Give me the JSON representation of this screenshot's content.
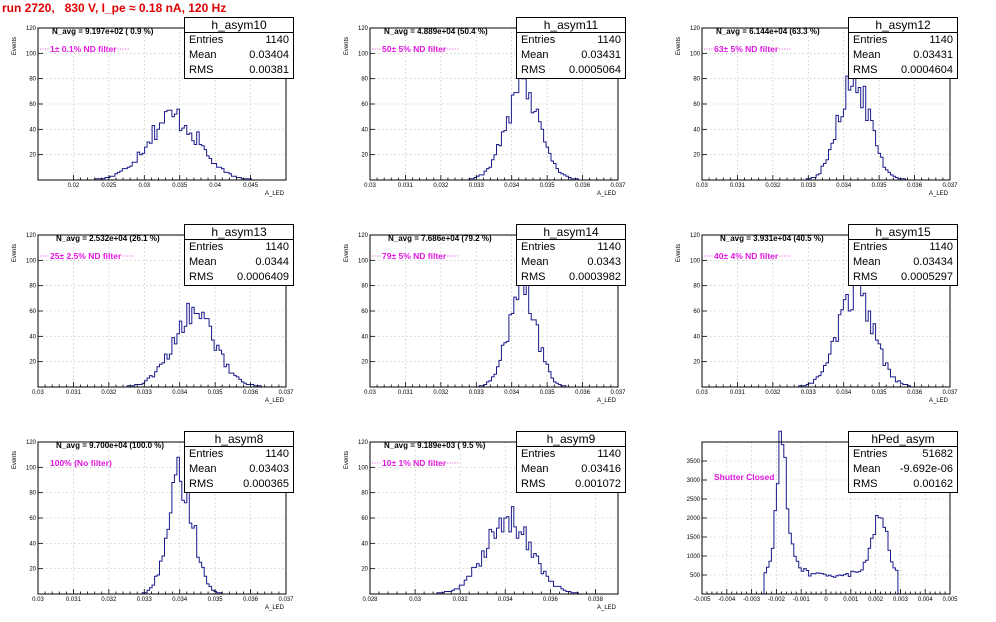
{
  "run_title": "run 2720,   830 V, I_pe ≈ 0.18 nA, 120 Hz",
  "chart_data": [
    {
      "type": "bar",
      "name": "h_asym10",
      "stats": {
        "entries_label": "Entries",
        "entries": "1140",
        "mean_label": "Mean",
        "mean": "0.03404",
        "rms_label": "RMS",
        "rms": "0.00381"
      },
      "n_avg": "N_avg = 9.197e+02 ( 0.9 %)",
      "filter": "1± 0.1% ND filter",
      "ylabel": "Events",
      "xlabel": "A_LED",
      "xlim": [
        0.015,
        0.05
      ],
      "ylim": [
        0,
        120
      ],
      "xticks": [
        0.02,
        0.025,
        0.03,
        0.035,
        0.04,
        0.045
      ],
      "xtick_labels": [
        "0.02",
        "0.025",
        "0.03",
        "0.035",
        "0.04",
        "0.045"
      ],
      "yticks": [
        0,
        20,
        40,
        60,
        80,
        100,
        120
      ],
      "ytick_labels": [
        "",
        "20",
        "40",
        "60",
        "80",
        "100",
        "120"
      ],
      "mean_value": 0.03404,
      "rms_value": 0.00381,
      "peak": 50,
      "entries_value": 1140
    },
    {
      "type": "bar",
      "name": "h_asym11",
      "stats": {
        "entries_label": "Entries",
        "entries": "1140",
        "mean_label": "Mean",
        "mean": "0.03431",
        "rms_label": "RMS",
        "rms": "0.0005064"
      },
      "n_avg": "N_avg = 4.889e+04 (50.4 %)",
      "filter": "50± 5% ND filter",
      "ylabel": "Events",
      "xlabel": "A_LED",
      "xlim": [
        0.03,
        0.037
      ],
      "ylim": [
        0,
        120
      ],
      "xticks": [
        0.03,
        0.031,
        0.032,
        0.033,
        0.034,
        0.035,
        0.036,
        0.037
      ],
      "xtick_labels": [
        "0.03",
        "0.031",
        "0.032",
        "0.033",
        "0.034",
        "0.035",
        "0.036",
        "0.037"
      ],
      "yticks": [
        0,
        20,
        40,
        60,
        80,
        100,
        120
      ],
      "ytick_labels": [
        "",
        "20",
        "40",
        "60",
        "80",
        "100",
        "120"
      ],
      "mean_value": 0.03431,
      "rms_value": 0.0005064,
      "peak": 75,
      "entries_value": 1140
    },
    {
      "type": "bar",
      "name": "h_asym12",
      "stats": {
        "entries_label": "Entries",
        "entries": "1140",
        "mean_label": "Mean",
        "mean": "0.03431",
        "rms_label": "RMS",
        "rms": "0.0004604"
      },
      "n_avg": "N_avg = 6.144e+04 (63.3 %)",
      "filter": "63± 5% ND filter",
      "ylabel": "Events",
      "xlabel": "A_LED",
      "xlim": [
        0.03,
        0.037
      ],
      "ylim": [
        0,
        120
      ],
      "xticks": [
        0.03,
        0.031,
        0.032,
        0.033,
        0.034,
        0.035,
        0.036,
        0.037
      ],
      "xtick_labels": [
        "0.03",
        "0.031",
        "0.032",
        "0.033",
        "0.034",
        "0.035",
        "0.036",
        "0.037"
      ],
      "yticks": [
        0,
        20,
        40,
        60,
        80,
        100,
        120
      ],
      "ytick_labels": [
        "",
        "20",
        "40",
        "60",
        "80",
        "100",
        "120"
      ],
      "mean_value": 0.03431,
      "rms_value": 0.0004604,
      "peak": 80,
      "entries_value": 1140
    },
    {
      "type": "bar",
      "name": "h_asym13",
      "stats": {
        "entries_label": "Entries",
        "entries": "1140",
        "mean_label": "Mean",
        "mean": "0.0344",
        "rms_label": "RMS",
        "rms": "0.0006409"
      },
      "n_avg": "N_avg = 2.532e+04 (26.1 %)",
      "filter": "25± 2.5% ND filter",
      "ylabel": "Events",
      "xlabel": "A_LED",
      "xlim": [
        0.03,
        0.037
      ],
      "ylim": [
        0,
        120
      ],
      "xticks": [
        0.03,
        0.031,
        0.032,
        0.033,
        0.034,
        0.035,
        0.036,
        0.037
      ],
      "xtick_labels": [
        "0.03",
        "0.031",
        "0.032",
        "0.033",
        "0.034",
        "0.035",
        "0.036",
        "0.037"
      ],
      "yticks": [
        0,
        20,
        40,
        60,
        80,
        100,
        120
      ],
      "ytick_labels": [
        "",
        "20",
        "40",
        "60",
        "80",
        "100",
        "120"
      ],
      "mean_value": 0.0344,
      "rms_value": 0.0006409,
      "peak": 57,
      "entries_value": 1140
    },
    {
      "type": "bar",
      "name": "h_asym14",
      "stats": {
        "entries_label": "Entries",
        "entries": "1140",
        "mean_label": "Mean",
        "mean": "0.0343",
        "rms_label": "RMS",
        "rms": "0.0003982"
      },
      "n_avg": "N_avg = 7.686e+04 (79.2 %)",
      "filter": "79± 5% ND filter",
      "ylabel": "Events",
      "xlabel": "A_LED",
      "xlim": [
        0.03,
        0.037
      ],
      "ylim": [
        0,
        120
      ],
      "xticks": [
        0.03,
        0.031,
        0.032,
        0.033,
        0.034,
        0.035,
        0.036,
        0.037
      ],
      "xtick_labels": [
        "0.03",
        "0.031",
        "0.032",
        "0.033",
        "0.034",
        "0.035",
        "0.036",
        "0.037"
      ],
      "yticks": [
        0,
        20,
        40,
        60,
        80,
        100,
        120
      ],
      "ytick_labels": [
        "",
        "20",
        "40",
        "60",
        "80",
        "100",
        "120"
      ],
      "mean_value": 0.0343,
      "rms_value": 0.0003982,
      "peak": 83,
      "entries_value": 1140
    },
    {
      "type": "bar",
      "name": "h_asym15",
      "stats": {
        "entries_label": "Entries",
        "entries": "1140",
        "mean_label": "Mean",
        "mean": "0.03434",
        "rms_label": "RMS",
        "rms": "0.0005297"
      },
      "n_avg": "N_avg = 3.931e+04 (40.5 %)",
      "filter": "40± 4% ND filter",
      "ylabel": "Events",
      "xlabel": "A_LED",
      "xlim": [
        0.03,
        0.037
      ],
      "ylim": [
        0,
        120
      ],
      "xticks": [
        0.03,
        0.031,
        0.032,
        0.033,
        0.034,
        0.035,
        0.036,
        0.037
      ],
      "xtick_labels": [
        "0.03",
        "0.031",
        "0.032",
        "0.033",
        "0.034",
        "0.035",
        "0.036",
        "0.037"
      ],
      "yticks": [
        0,
        20,
        40,
        60,
        80,
        100,
        120
      ],
      "ytick_labels": [
        "",
        "20",
        "40",
        "60",
        "80",
        "100",
        "120"
      ],
      "mean_value": 0.03434,
      "rms_value": 0.0005297,
      "peak": 73,
      "entries_value": 1140
    },
    {
      "type": "bar",
      "name": "h_asym8",
      "stats": {
        "entries_label": "Entries",
        "entries": "1140",
        "mean_label": "Mean",
        "mean": "0.03403",
        "rms_label": "RMS",
        "rms": "0.000365"
      },
      "n_avg": "N_avg = 9.700e+04 (100.0 %)",
      "filter": "100% (No filter)",
      "ylabel": "Events",
      "xlabel": "A_LED",
      "xlim": [
        0.03,
        0.037
      ],
      "ylim": [
        0,
        120
      ],
      "xticks": [
        0.03,
        0.031,
        0.032,
        0.033,
        0.034,
        0.035,
        0.036,
        0.037
      ],
      "xtick_labels": [
        "0.03",
        "0.031",
        "0.032",
        "0.033",
        "0.034",
        "0.035",
        "0.036",
        "0.037"
      ],
      "yticks": [
        0,
        20,
        40,
        60,
        80,
        100,
        120
      ],
      "ytick_labels": [
        "",
        "20",
        "40",
        "60",
        "80",
        "100",
        "120"
      ],
      "mean_value": 0.03403,
      "rms_value": 0.000365,
      "peak": 92,
      "entries_value": 1140
    },
    {
      "type": "bar",
      "name": "h_asym9",
      "stats": {
        "entries_label": "Entries",
        "entries": "1140",
        "mean_label": "Mean",
        "mean": "0.03416",
        "rms_label": "RMS",
        "rms": "0.001072"
      },
      "n_avg": "N_avg = 9.189e+03 ( 9.5 %)",
      "filter": "10± 1% ND filter",
      "ylabel": "Events",
      "xlabel": "A_LED",
      "xlim": [
        0.028,
        0.039
      ],
      "ylim": [
        0,
        120
      ],
      "xticks": [
        0.028,
        0.03,
        0.032,
        0.034,
        0.036,
        0.038
      ],
      "xtick_labels": [
        "0.028",
        "0.03",
        "0.032",
        "0.034",
        "0.036",
        "0.038"
      ],
      "yticks": [
        0,
        20,
        40,
        60,
        80,
        100,
        120
      ],
      "ytick_labels": [
        "",
        "20",
        "40",
        "60",
        "80",
        "100",
        "120"
      ],
      "mean_value": 0.03416,
      "rms_value": 0.001072,
      "peak": 58,
      "entries_value": 1140
    },
    {
      "type": "bar",
      "name": "hPed_asym",
      "stats": {
        "entries_label": "Entries",
        "entries": "51682",
        "mean_label": "Mean",
        "mean": "-9.692e-06",
        "rms_label": "RMS",
        "rms": "0.00162"
      },
      "n_avg": "",
      "filter": "Shutter Closed",
      "ylabel": "",
      "xlabel": "",
      "xlim": [
        -0.005,
        0.005
      ],
      "ylim": [
        0,
        4000
      ],
      "xticks": [
        -0.005,
        -0.004,
        -0.003,
        -0.002,
        -0.001,
        0,
        0.001,
        0.002,
        0.003,
        0.004,
        0.005
      ],
      "xtick_labels": [
        "-0.005",
        "-0.004",
        "-0.003",
        "-0.002",
        "-0.001",
        "0",
        "0.001",
        "0.002",
        "0.003",
        "0.004",
        "0.005"
      ],
      "yticks": [
        0,
        500,
        1000,
        1500,
        2000,
        2500,
        3000,
        3500,
        4000
      ],
      "ytick_labels": [
        "",
        "500",
        "1000",
        "1500",
        "2000",
        "2500",
        "3000",
        "3500",
        ""
      ],
      "pedestal": true,
      "peak_left": 3450,
      "peak_right": 2000,
      "valley": 500,
      "peak_left_x": -0.0018,
      "peak_right_x": 0.0022
    }
  ]
}
